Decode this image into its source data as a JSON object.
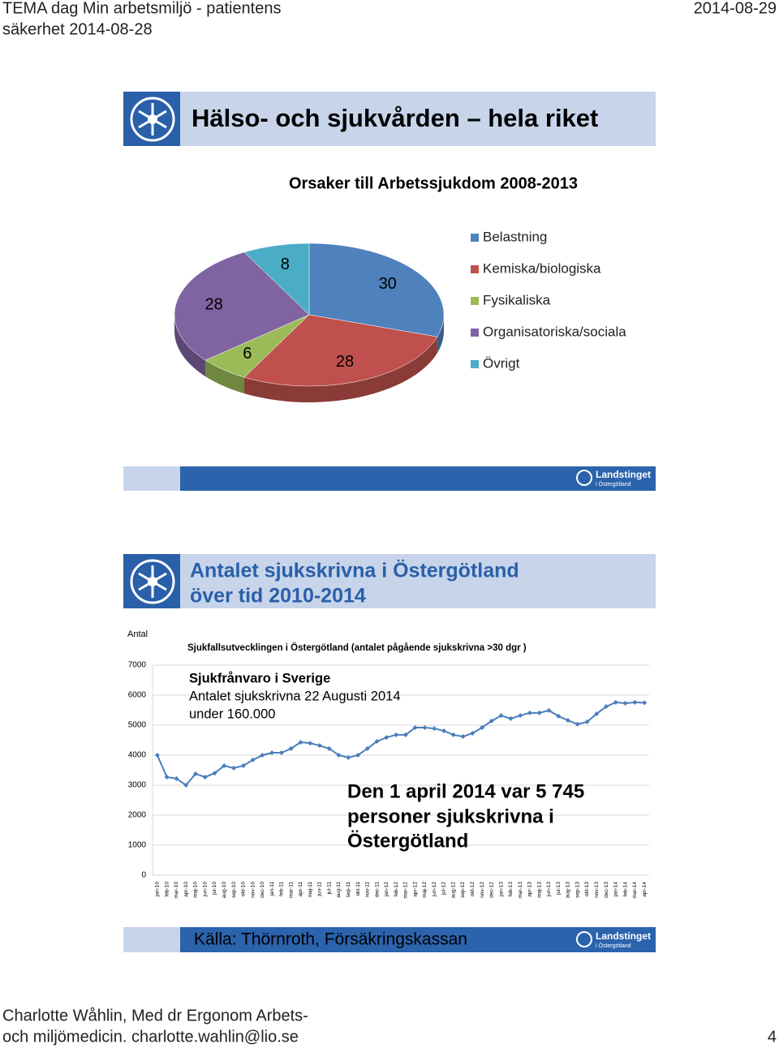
{
  "header": {
    "title_lines": [
      "TEMA dag Min arbetsmiljö - patientens",
      "säkerhet 2014-08-28"
    ],
    "date": "2014-08-29"
  },
  "slides": [
    {
      "title": "Hälso- och sjukvården – hela riket",
      "logo": [
        "Landstinget",
        "i Östergötland"
      ]
    },
    {
      "title_lines": [
        "Antalet sjukskrivna i  Östergötland",
        "över tid 2010-2014"
      ],
      "source": "Källa: Thörnroth, Försäkringskassan",
      "logo": [
        "Landstinget",
        "i Östergötland"
      ]
    }
  ],
  "chart_data": [
    {
      "type": "pie",
      "title": "Orsaker till Arbetssjukdom  2008-2013",
      "categories": [
        "Belastning",
        "Kemiska/biologiska",
        "Fysikaliska",
        "Organisatoriska/sociala",
        "Övrigt"
      ],
      "values": [
        30,
        28,
        6,
        28,
        8
      ],
      "colors": [
        "#4f81bd",
        "#c0504d",
        "#9bbb59",
        "#8064a2",
        "#4bacc6"
      ],
      "legend": "right"
    },
    {
      "type": "line",
      "title": "Sjukfallsutvecklingen i Östergötland (antalet pågående sjukskrivna >30 dgr )",
      "ylabel": "Antal",
      "categories": [
        "jan-10",
        "feb-10",
        "mar-10",
        "apr-10",
        "maj-10",
        "jun-10",
        "jul-10",
        "aug-10",
        "sep-10",
        "okt-10",
        "nov-10",
        "dec-10",
        "jan-11",
        "feb-11",
        "mar-11",
        "apr-11",
        "maj-11",
        "jun-11",
        "jul-11",
        "aug-11",
        "sep-11",
        "okt-11",
        "nov-11",
        "dec-11",
        "jan-12",
        "feb-12",
        "mar-12",
        "apr-12",
        "maj-12",
        "jun-12",
        "jul-12",
        "aug-12",
        "sep-12",
        "okt-12",
        "nov-12",
        "dec-12",
        "jan-13",
        "feb-13",
        "mar-13",
        "apr-13",
        "maj-13",
        "jun-13",
        "jul-13",
        "aug-13",
        "sep-13",
        "okt-13",
        "nov-13",
        "dec-13",
        "jan-14",
        "feb-14",
        "mar-14",
        "apr-14"
      ],
      "values": [
        4000,
        3270,
        3220,
        3000,
        3380,
        3270,
        3400,
        3650,
        3570,
        3650,
        3840,
        4000,
        4080,
        4080,
        4220,
        4430,
        4400,
        4320,
        4220,
        4000,
        3920,
        4000,
        4220,
        4460,
        4590,
        4680,
        4680,
        4920,
        4920,
        4890,
        4810,
        4680,
        4620,
        4730,
        4920,
        5140,
        5320,
        5220,
        5320,
        5410,
        5410,
        5490,
        5300,
        5160,
        5030,
        5110,
        5380,
        5620,
        5760,
        5730,
        5760,
        5745
      ],
      "color": "#4a7ebb",
      "ylim": [
        0,
        7000
      ],
      "yticks": [
        0,
        1000,
        2000,
        3000,
        4000,
        5000,
        6000,
        7000
      ],
      "grid": true,
      "annotations": {
        "small": [
          "Sjukfrånvaro i Sverige",
          "Antalet sjukskrivna 22 Augusti 2014",
          "under 160.000"
        ],
        "large": [
          "Den 1 april 2014 var 5 745",
          "personer sjukskrivna i",
          "Östergötland"
        ]
      }
    }
  ],
  "footer": {
    "lines": [
      "Charlotte Wåhlin, Med dr Ergonom Arbets-",
      "och miljömedicin. charlotte.wahlin@lio.se"
    ],
    "page": 4
  }
}
